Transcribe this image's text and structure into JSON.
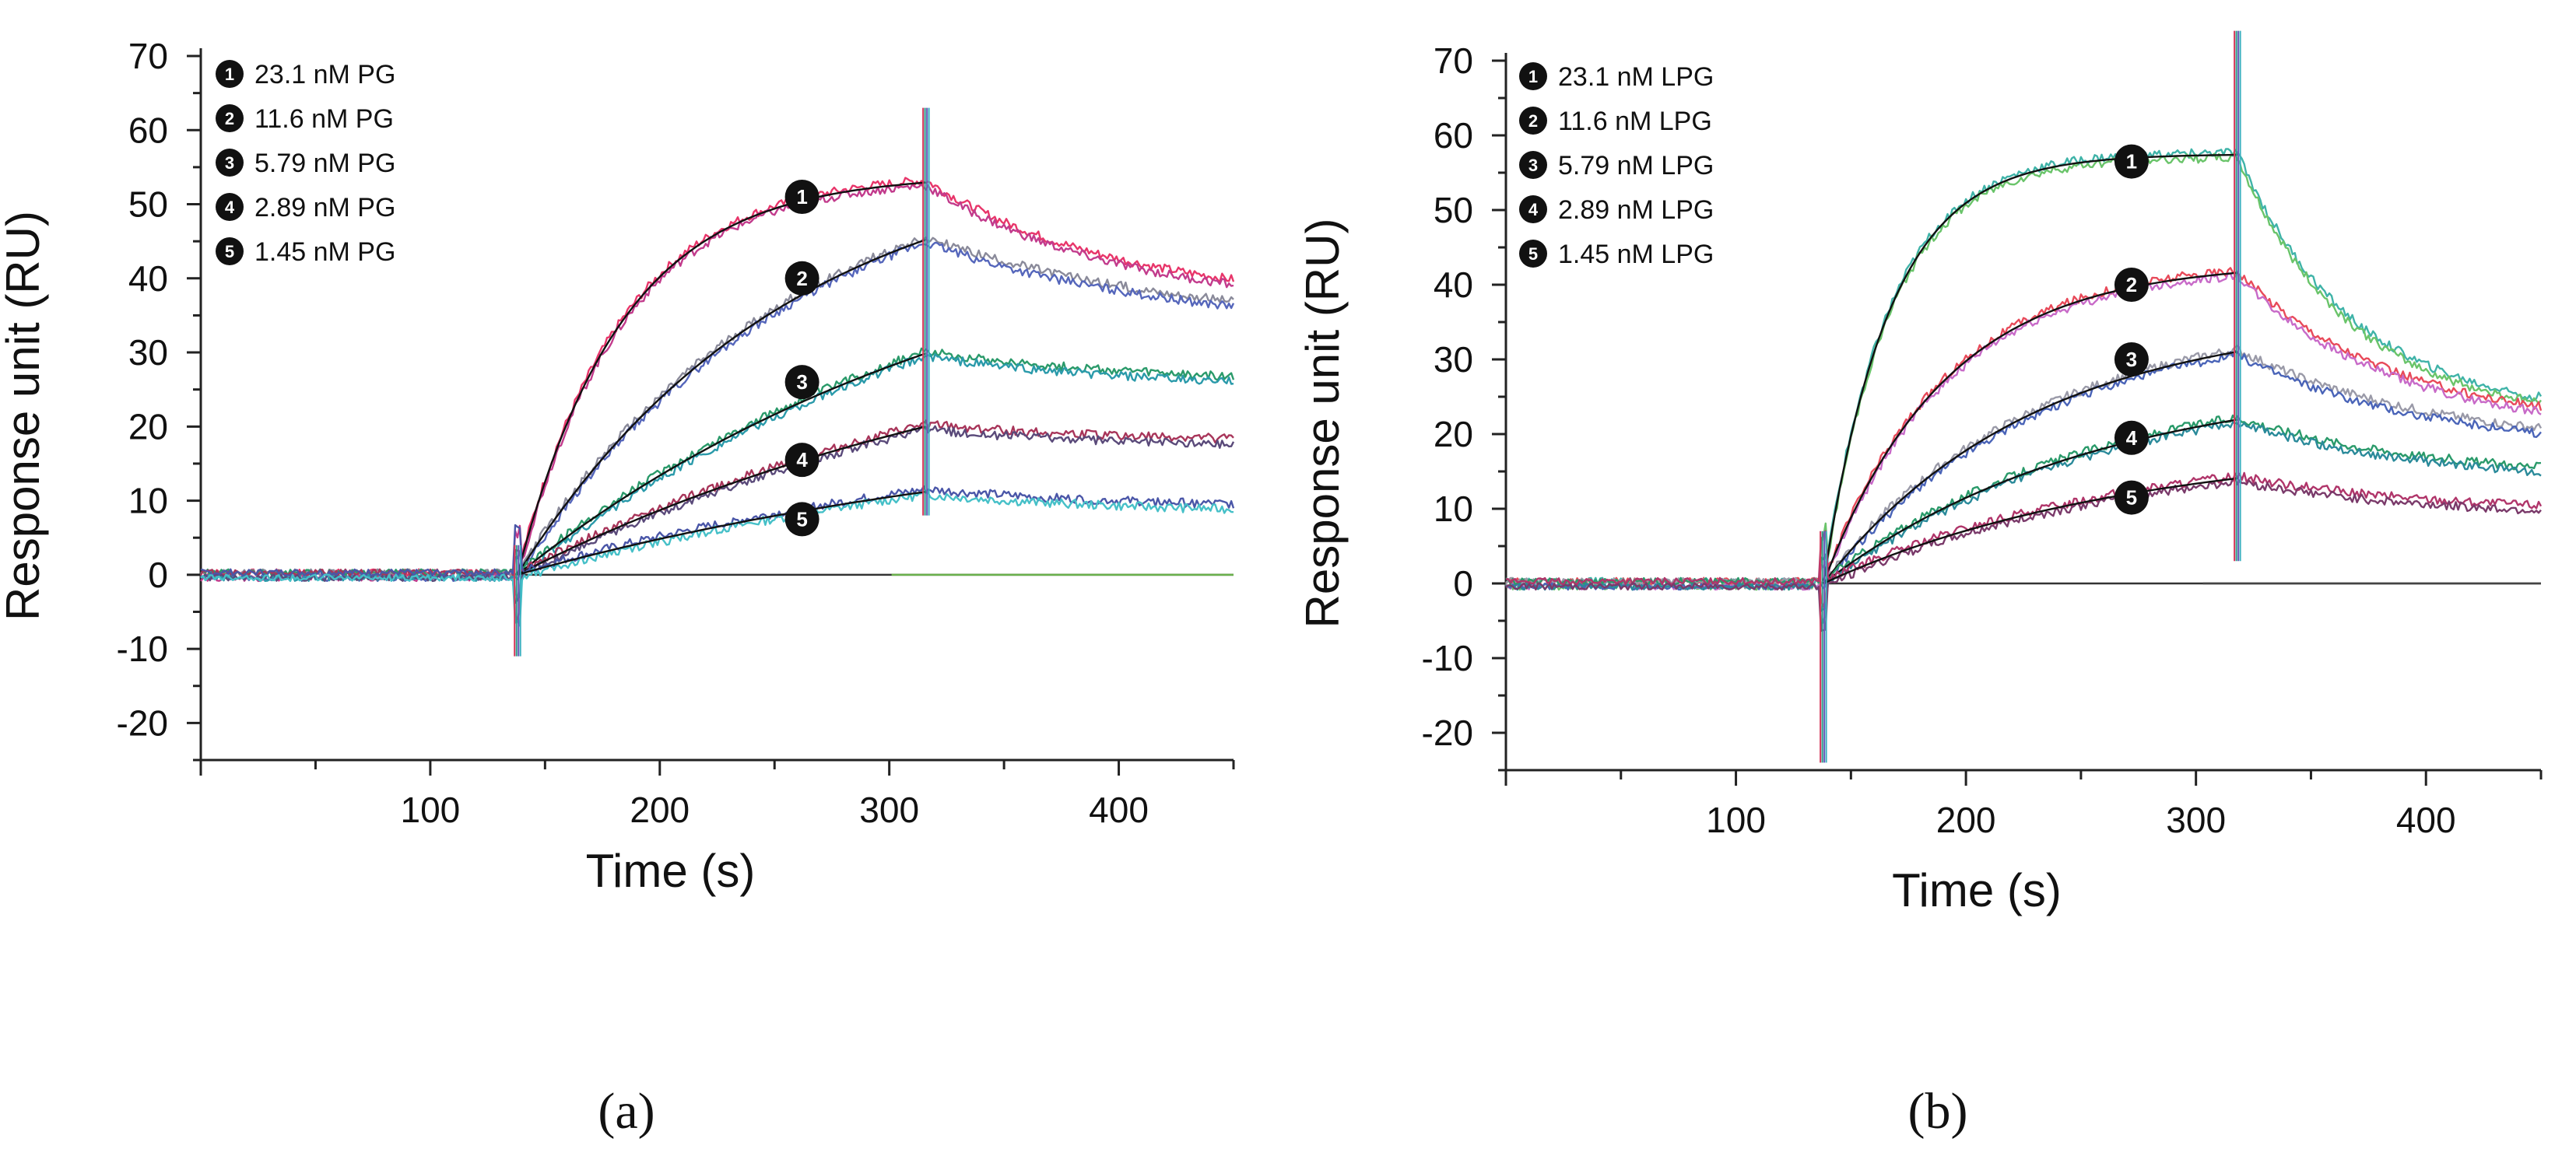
{
  "figure_labels": [
    "(a)",
    "(b)"
  ],
  "chart_data": [
    {
      "type": "line",
      "title": "",
      "xlabel": "Time (s)",
      "ylabel": "Response unit (RU)",
      "xlim": [
        0,
        450
      ],
      "ylim": [
        -25,
        70
      ],
      "xticks": [
        100,
        200,
        300,
        400
      ],
      "yticks": [
        -20,
        -10,
        0,
        10,
        20,
        30,
        40,
        50,
        60,
        70
      ],
      "grid": false,
      "legend_position": "top-left",
      "injection_start": 138,
      "injection_end": 316,
      "legend": [
        {
          "marker": "1",
          "label": "23.1  nM PG"
        },
        {
          "marker": "2",
          "label": "11.6  nM PG"
        },
        {
          "marker": "3",
          "label": "5.79  nM PG"
        },
        {
          "marker": "4",
          "label": "2.89  nM PG"
        },
        {
          "marker": "5",
          "label": "1.45  nM PG"
        }
      ],
      "series": [
        {
          "name": "23.1 nM PG",
          "marker": "1",
          "color": "#e8356a",
          "color2": "#c23b8c",
          "plateau": 54,
          "kon_shape": 0.022,
          "end_value": 39,
          "off_shape": 0.012,
          "marker_x": 262,
          "marker_y": 51
        },
        {
          "name": "11.6 nM PG",
          "marker": "2",
          "color": "#8a8a9a",
          "color2": "#5566bb",
          "plateau": 58,
          "kon_shape": 0.0085,
          "end_value": 35,
          "off_shape": 0.009,
          "marker_x": 262,
          "marker_y": 40
        },
        {
          "name": "5.79 nM PG",
          "marker": "3",
          "color": "#2a9a6a",
          "color2": "#2a9aaa",
          "plateau": 52,
          "kon_shape": 0.0048,
          "end_value": 26,
          "off_shape": 0.01,
          "marker_x": 262,
          "marker_y": 26
        },
        {
          "name": "2.89 nM PG",
          "marker": "4",
          "color": "#a8355a",
          "color2": "#5a4a7a",
          "plateau": 38,
          "kon_shape": 0.0042,
          "end_value": 18,
          "off_shape": 0.012,
          "marker_x": 262,
          "marker_y": 15.5
        },
        {
          "name": "1.45 nM PG",
          "marker": "5",
          "color": "#4a56a8",
          "color2": "#46c0c8",
          "plateau": 22,
          "kon_shape": 0.004,
          "end_value": 9,
          "off_shape": 0.01,
          "marker_x": 262,
          "marker_y": 7.5
        }
      ],
      "baseline_color": "#6ab04c"
    },
    {
      "type": "line",
      "title": "",
      "xlabel": "Time (s)",
      "ylabel": "Response unit (RU)",
      "xlim": [
        0,
        450
      ],
      "ylim": [
        -25,
        70
      ],
      "xticks": [
        100,
        200,
        300,
        400
      ],
      "yticks": [
        -20,
        -10,
        0,
        10,
        20,
        30,
        40,
        50,
        60,
        70
      ],
      "grid": false,
      "legend_position": "top-left",
      "injection_start": 138,
      "injection_end": 318,
      "legend": [
        {
          "marker": "1",
          "label": "23.1  nM LPG"
        },
        {
          "marker": "2",
          "label": "11.6  nM LPG"
        },
        {
          "marker": "3",
          "label": "5.79  nM LPG"
        },
        {
          "marker": "4",
          "label": "2.89  nM LPG"
        },
        {
          "marker": "5",
          "label": "1.45  nM LPG"
        }
      ],
      "series": [
        {
          "name": "23.1 nM LPG",
          "marker": "1",
          "color": "#3fb3a8",
          "color2": "#6ac46a",
          "plateau": 57.5,
          "kon_shape": 0.035,
          "end_value": 28,
          "off_shape": 0.02,
          "marker_x": 272,
          "marker_y": 56.5
        },
        {
          "name": "11.6 nM LPG",
          "marker": "2",
          "color": "#e84a5a",
          "color2": "#c86ac8",
          "plateau": 43,
          "kon_shape": 0.019,
          "end_value": 24,
          "off_shape": 0.015,
          "marker_x": 272,
          "marker_y": 40
        },
        {
          "name": "5.79 nM LPG",
          "marker": "3",
          "color": "#9a9aa8",
          "color2": "#4a64b8",
          "plateau": 36,
          "kon_shape": 0.011,
          "end_value": 20,
          "off_shape": 0.012,
          "marker_x": 272,
          "marker_y": 30
        },
        {
          "name": "2.89 nM LPG",
          "marker": "4",
          "color": "#2a9a6a",
          "color2": "#2a8a9a",
          "plateau": 28,
          "kon_shape": 0.0085,
          "end_value": 15,
          "off_shape": 0.012,
          "marker_x": 272,
          "marker_y": 19.5
        },
        {
          "name": "1.45 nM LPG",
          "marker": "5",
          "color": "#b0356a",
          "color2": "#7a3a6a",
          "plateau": 19,
          "kon_shape": 0.0075,
          "end_value": 10,
          "off_shape": 0.012,
          "marker_x": 272,
          "marker_y": 11.5
        }
      ],
      "baseline_color": "#444444"
    }
  ]
}
